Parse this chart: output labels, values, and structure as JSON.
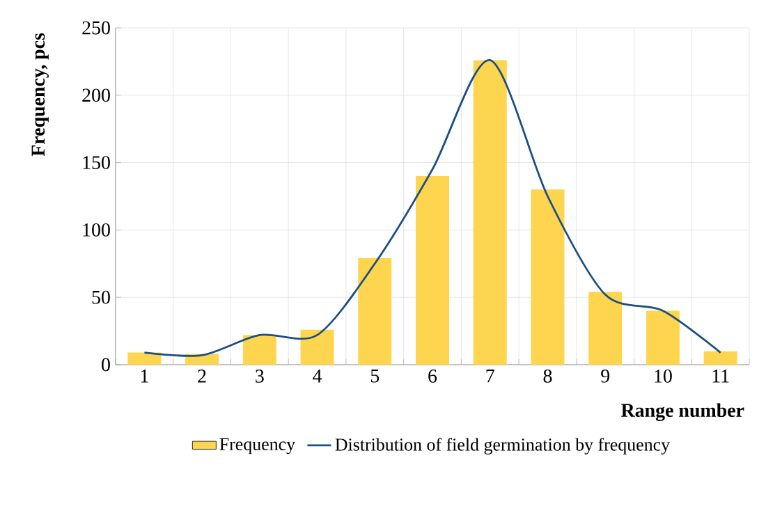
{
  "chart_data": {
    "type": "bar",
    "xlabel": "Range number",
    "ylabel": "Frequency, pcs",
    "categories": [
      "1",
      "2",
      "3",
      "4",
      "5",
      "6",
      "7",
      "8",
      "9",
      "10",
      "11"
    ],
    "series": [
      {
        "name": "Frequency",
        "color": "#fdd54f",
        "values": [
          9,
          8,
          22,
          26,
          79,
          140,
          226,
          130,
          54,
          40,
          10
        ]
      },
      {
        "name": "Distribution of field germination by frequency",
        "type": "line",
        "color": "#1b4f86",
        "values": [
          9,
          7,
          22,
          22,
          75,
          145,
          226,
          125,
          52,
          40,
          9
        ]
      }
    ],
    "ylim": [
      0,
      250
    ],
    "yticks": [
      0,
      50,
      100,
      150,
      200,
      250
    ],
    "grid": true,
    "legend": "bottom",
    "marker": "none",
    "line_style": "solid"
  }
}
